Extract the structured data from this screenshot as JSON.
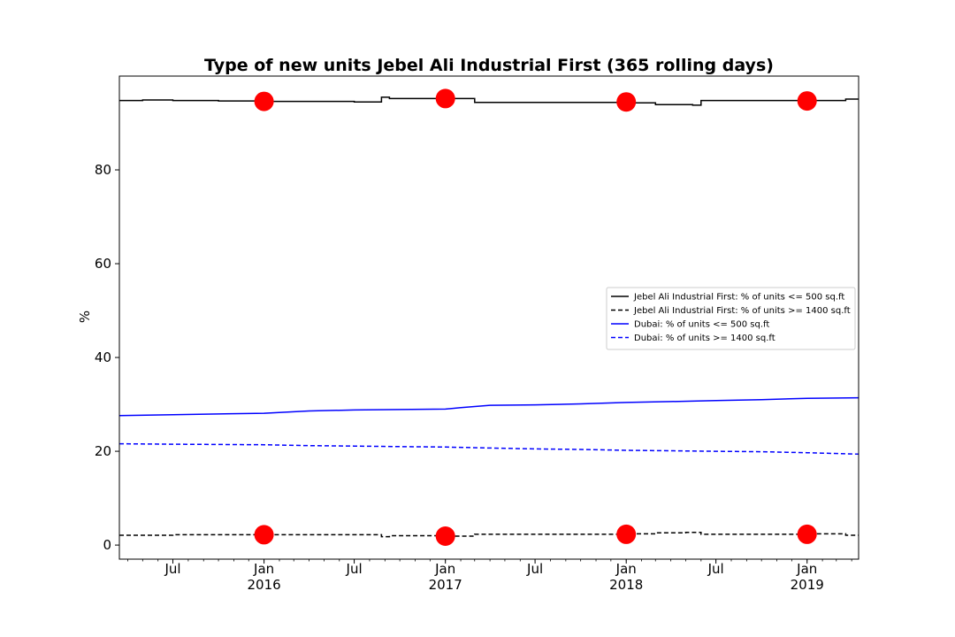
{
  "chart_data": {
    "type": "line",
    "title": "Type of new units Jebel Ali Industrial First (365 rolling days)",
    "xlabel": "",
    "ylabel": "%",
    "x_range": [
      "2015-03-15",
      "2019-04-15"
    ],
    "ylim": [
      -3,
      100
    ],
    "y_ticks": [
      0,
      20,
      40,
      60,
      80
    ],
    "x_ticks": [
      {
        "date": "2015-07-01",
        "label": "Jul",
        "year": ""
      },
      {
        "date": "2016-01-01",
        "label": "Jan",
        "year": "2016"
      },
      {
        "date": "2016-07-01",
        "label": "Jul",
        "year": ""
      },
      {
        "date": "2017-01-01",
        "label": "Jan",
        "year": "2017"
      },
      {
        "date": "2017-07-01",
        "label": "Jul",
        "year": ""
      },
      {
        "date": "2018-01-01",
        "label": "Jan",
        "year": "2018"
      },
      {
        "date": "2018-07-01",
        "label": "Jul",
        "year": ""
      },
      {
        "date": "2019-01-01",
        "label": "Jan",
        "year": "2019"
      }
    ],
    "grid": false,
    "legend_position": "right",
    "series": [
      {
        "name": "Jebel Ali Industrial First: % of units <= 500 sq.ft",
        "color": "#000000",
        "dash": "solid",
        "step": true,
        "x": [
          "2015-03-15",
          "2015-05-01",
          "2015-07-01",
          "2015-10-01",
          "2016-01-01",
          "2016-04-01",
          "2016-07-01",
          "2016-08-25",
          "2016-09-10",
          "2016-12-01",
          "2017-03-01",
          "2017-06-01",
          "2017-09-01",
          "2017-12-15",
          "2018-03-01",
          "2018-05-15",
          "2018-06-01",
          "2018-10-01",
          "2019-01-01",
          "2019-03-20",
          "2019-04-15"
        ],
        "y": [
          94.8,
          94.9,
          94.8,
          94.7,
          94.6,
          94.6,
          94.5,
          95.5,
          95.2,
          95.2,
          94.4,
          94.4,
          94.4,
          94.3,
          93.9,
          93.8,
          94.8,
          94.8,
          94.8,
          95.1,
          95.1
        ]
      },
      {
        "name": "Jebel Ali Industrial First: % of units >= 1400 sq.ft",
        "color": "#000000",
        "dash": "dashed",
        "step": true,
        "x": [
          "2015-03-15",
          "2015-07-01",
          "2016-01-01",
          "2016-07-01",
          "2016-08-25",
          "2016-09-10",
          "2017-01-01",
          "2017-03-01",
          "2017-09-01",
          "2017-12-15",
          "2018-03-01",
          "2018-05-01",
          "2018-06-01",
          "2018-10-01",
          "2019-01-01",
          "2019-03-20",
          "2019-04-15"
        ],
        "y": [
          2.1,
          2.2,
          2.2,
          2.2,
          1.8,
          2.0,
          1.9,
          2.3,
          2.3,
          2.4,
          2.6,
          2.7,
          2.3,
          2.3,
          2.4,
          2.1,
          2.1
        ]
      },
      {
        "name": "Dubai: % of units <= 500 sq.ft",
        "color": "#0000ff",
        "dash": "solid",
        "step": false,
        "x": [
          "2015-03-15",
          "2015-07-01",
          "2016-01-01",
          "2016-04-01",
          "2016-07-01",
          "2016-10-01",
          "2017-01-01",
          "2017-02-01",
          "2017-04-01",
          "2017-07-01",
          "2017-10-01",
          "2018-01-01",
          "2018-04-01",
          "2018-07-01",
          "2018-10-01",
          "2019-01-01",
          "2019-04-15"
        ],
        "y": [
          27.6,
          27.8,
          28.1,
          28.6,
          28.8,
          28.9,
          29.0,
          29.3,
          29.8,
          29.9,
          30.1,
          30.4,
          30.6,
          30.8,
          31.0,
          31.3,
          31.4
        ]
      },
      {
        "name": "Dubai: % of units >= 1400 sq.ft",
        "color": "#0000ff",
        "dash": "dashed",
        "step": false,
        "x": [
          "2015-03-15",
          "2015-07-01",
          "2016-01-01",
          "2016-04-01",
          "2016-07-01",
          "2016-10-01",
          "2017-01-01",
          "2017-04-01",
          "2017-07-01",
          "2017-10-01",
          "2018-01-01",
          "2018-04-01",
          "2018-07-01",
          "2018-10-01",
          "2019-01-01",
          "2019-04-15"
        ],
        "y": [
          21.6,
          21.5,
          21.4,
          21.2,
          21.1,
          21.0,
          20.9,
          20.7,
          20.5,
          20.4,
          20.2,
          20.1,
          20.0,
          19.9,
          19.7,
          19.4
        ]
      }
    ],
    "markers": {
      "color": "#ff0000",
      "points": [
        {
          "x": "2016-01-01",
          "y": 94.6
        },
        {
          "x": "2017-01-01",
          "y": 95.2
        },
        {
          "x": "2018-01-01",
          "y": 94.5
        },
        {
          "x": "2019-01-01",
          "y": 94.7
        },
        {
          "x": "2016-01-01",
          "y": 2.2
        },
        {
          "x": "2017-01-01",
          "y": 1.9
        },
        {
          "x": "2018-01-01",
          "y": 2.3
        },
        {
          "x": "2019-01-01",
          "y": 2.3
        }
      ]
    }
  }
}
